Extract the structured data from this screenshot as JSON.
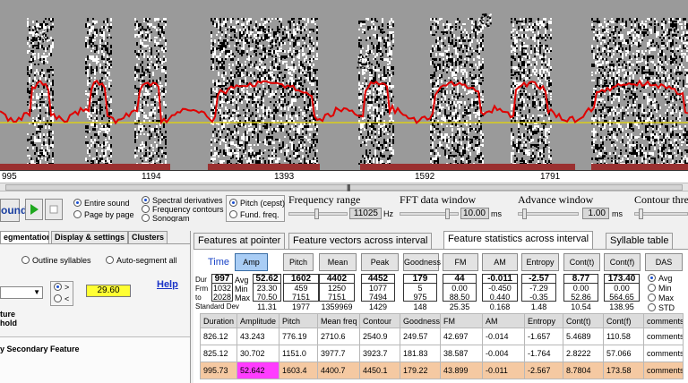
{
  "spectrogram": {
    "time_ticks": [
      "995",
      "1194",
      "1393",
      "1592",
      "1791"
    ]
  },
  "controls": {
    "sound_button": "ound",
    "play_icon": "play-icon",
    "stop_icon": "stop-icon",
    "radio_entire_sound": "Entire sound",
    "radio_page_by_page": "Page by page",
    "radio_spectral_derivatives": "Spectral derivatives",
    "radio_frequency_contours": "Frequency contours",
    "radio_sonogram": "Sonogram",
    "radio_pitch_cepst": "Pitch (cepst)",
    "radio_fund_freq": "Fund. freq.",
    "frequency_range_label": "Frequency range",
    "frequency_range_value": "11025",
    "frequency_range_unit": "Hz",
    "fft_window_label": "FFT data window",
    "fft_window_value": "10.00",
    "fft_window_unit": "ms",
    "advance_window_label": "Advance window",
    "advance_window_value": "1.00",
    "advance_window_unit": "ms",
    "contour_threshold_label": "Contour thres"
  },
  "left_panel": {
    "tabs": [
      "egmentation",
      "Display & settings",
      "Clusters"
    ],
    "outline_syllables": "Outline syllables",
    "auto_segment_all": "Auto-segment all",
    "radio_gt": ">",
    "radio_lt": "<",
    "threshold_value": "29.60",
    "help": "Help",
    "label_ture": "ture",
    "label_hold": "hold",
    "label_secondary": "y Secondary Feature"
  },
  "right_panel": {
    "tabs": [
      "Features at pointer",
      "Feature vectors across interval",
      "Feature statistics across interval",
      "Syllable table"
    ],
    "time_label": "Time",
    "feature_buttons": [
      "Amp",
      "Pitch",
      "Mean freq.",
      "Peak Freq.",
      "Goodness",
      "FM",
      "AM",
      "Entropy",
      "Cont(t)",
      "Cont(f)",
      "DAS"
    ],
    "dur_row_labels": [
      "Dur",
      "Frm",
      "to",
      "Standard Dev"
    ],
    "time_values": [
      "997",
      "1032",
      "2028"
    ],
    "stat_labels": [
      "Avg",
      "Min",
      "Max"
    ],
    "stats": [
      [
        "52.62",
        "23.30",
        "70.50",
        "11.31"
      ],
      [
        "1602",
        "459",
        "7151",
        "1977"
      ],
      [
        "4402",
        "1250",
        "7151",
        "1359969"
      ],
      [
        "4452",
        "1077",
        "7494",
        "1429"
      ],
      [
        "179",
        "5",
        "975",
        "148"
      ],
      [
        "44",
        "0.00",
        "88.50",
        "25.35"
      ],
      [
        "-0.011",
        "-0.450",
        "0.440",
        "0.168"
      ],
      [
        "-2.57",
        "-7.29",
        "-0.35",
        "1.48"
      ],
      [
        "8.77",
        "0.00",
        "52.86",
        "10.54"
      ],
      [
        "173.40",
        "0.00",
        "564.65",
        "138.95"
      ]
    ],
    "stat_radios": [
      "Avg",
      "Min",
      "Max",
      "STD"
    ],
    "table": {
      "columns": [
        "Duration",
        "Amplitude",
        "Pitch",
        "Mean freq",
        "Contour",
        "Goodness",
        "FM",
        "AM",
        "Entropy",
        "Cont(t)",
        "Cont(f)",
        "comments"
      ],
      "rows": [
        [
          "826.12",
          "43.243",
          "776.19",
          "2710.6",
          "2540.9",
          "249.57",
          "42.697",
          "-0.014",
          "-1.657",
          "5.4689",
          "110.58",
          "comments"
        ],
        [
          "825.12",
          "30.702",
          "1151.0",
          "3977.7",
          "3923.7",
          "181.83",
          "38.587",
          "-0.004",
          "-1.764",
          "2.8222",
          "57.066",
          "comments"
        ],
        [
          "995.73",
          "52.642",
          "1603.4",
          "4400.7",
          "4450.1",
          "179.22",
          "43.899",
          "-0.011",
          "-2.567",
          "8.7804",
          "173.58",
          "comments"
        ]
      ]
    }
  },
  "colors": {
    "selected_row": "#f5c9a2",
    "highlight_cell": "#ff3cff",
    "contour_red": "#e00000",
    "baseline_yellow": "#e6d800",
    "active_button": "#a9cdf5"
  }
}
